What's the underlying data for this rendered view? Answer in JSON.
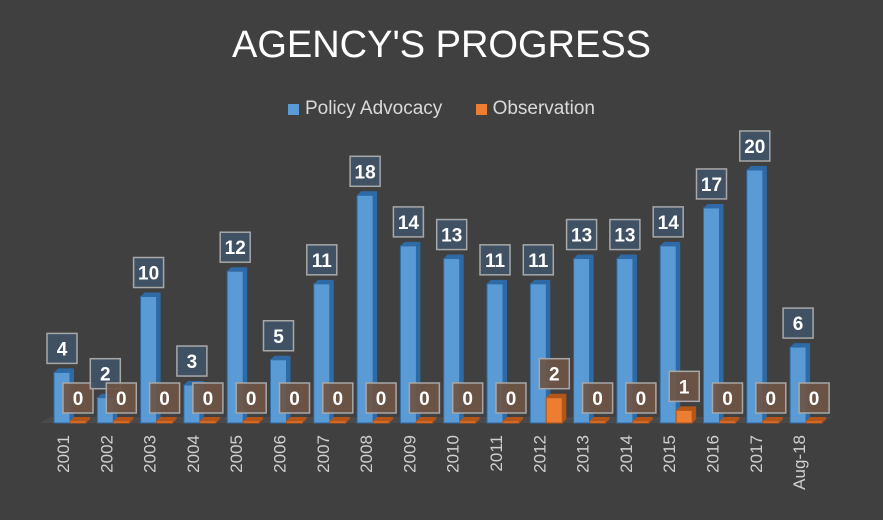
{
  "chart_data": {
    "type": "bar",
    "title": "AGENCY'S PROGRESS",
    "categories": [
      "2001",
      "2002",
      "2003",
      "2004",
      "2005",
      "2006",
      "2007",
      "2008",
      "2009",
      "2010",
      "2011",
      "2012",
      "2013",
      "2014",
      "2015",
      "2016",
      "2017",
      "Aug-18"
    ],
    "series": [
      {
        "name": "Policy Advocacy",
        "color": "#5b9bd5",
        "values": [
          4,
          2,
          10,
          3,
          12,
          5,
          11,
          18,
          14,
          13,
          11,
          11,
          13,
          13,
          14,
          17,
          20,
          6
        ]
      },
      {
        "name": "Observation",
        "color": "#ed7d31",
        "values": [
          0,
          0,
          0,
          0,
          0,
          0,
          0,
          0,
          0,
          0,
          0,
          2,
          0,
          0,
          1,
          0,
          0,
          0
        ]
      }
    ],
    "xlabel": "",
    "ylabel": "",
    "ylim": [
      0,
      20
    ],
    "grid": false,
    "legend": "top"
  }
}
